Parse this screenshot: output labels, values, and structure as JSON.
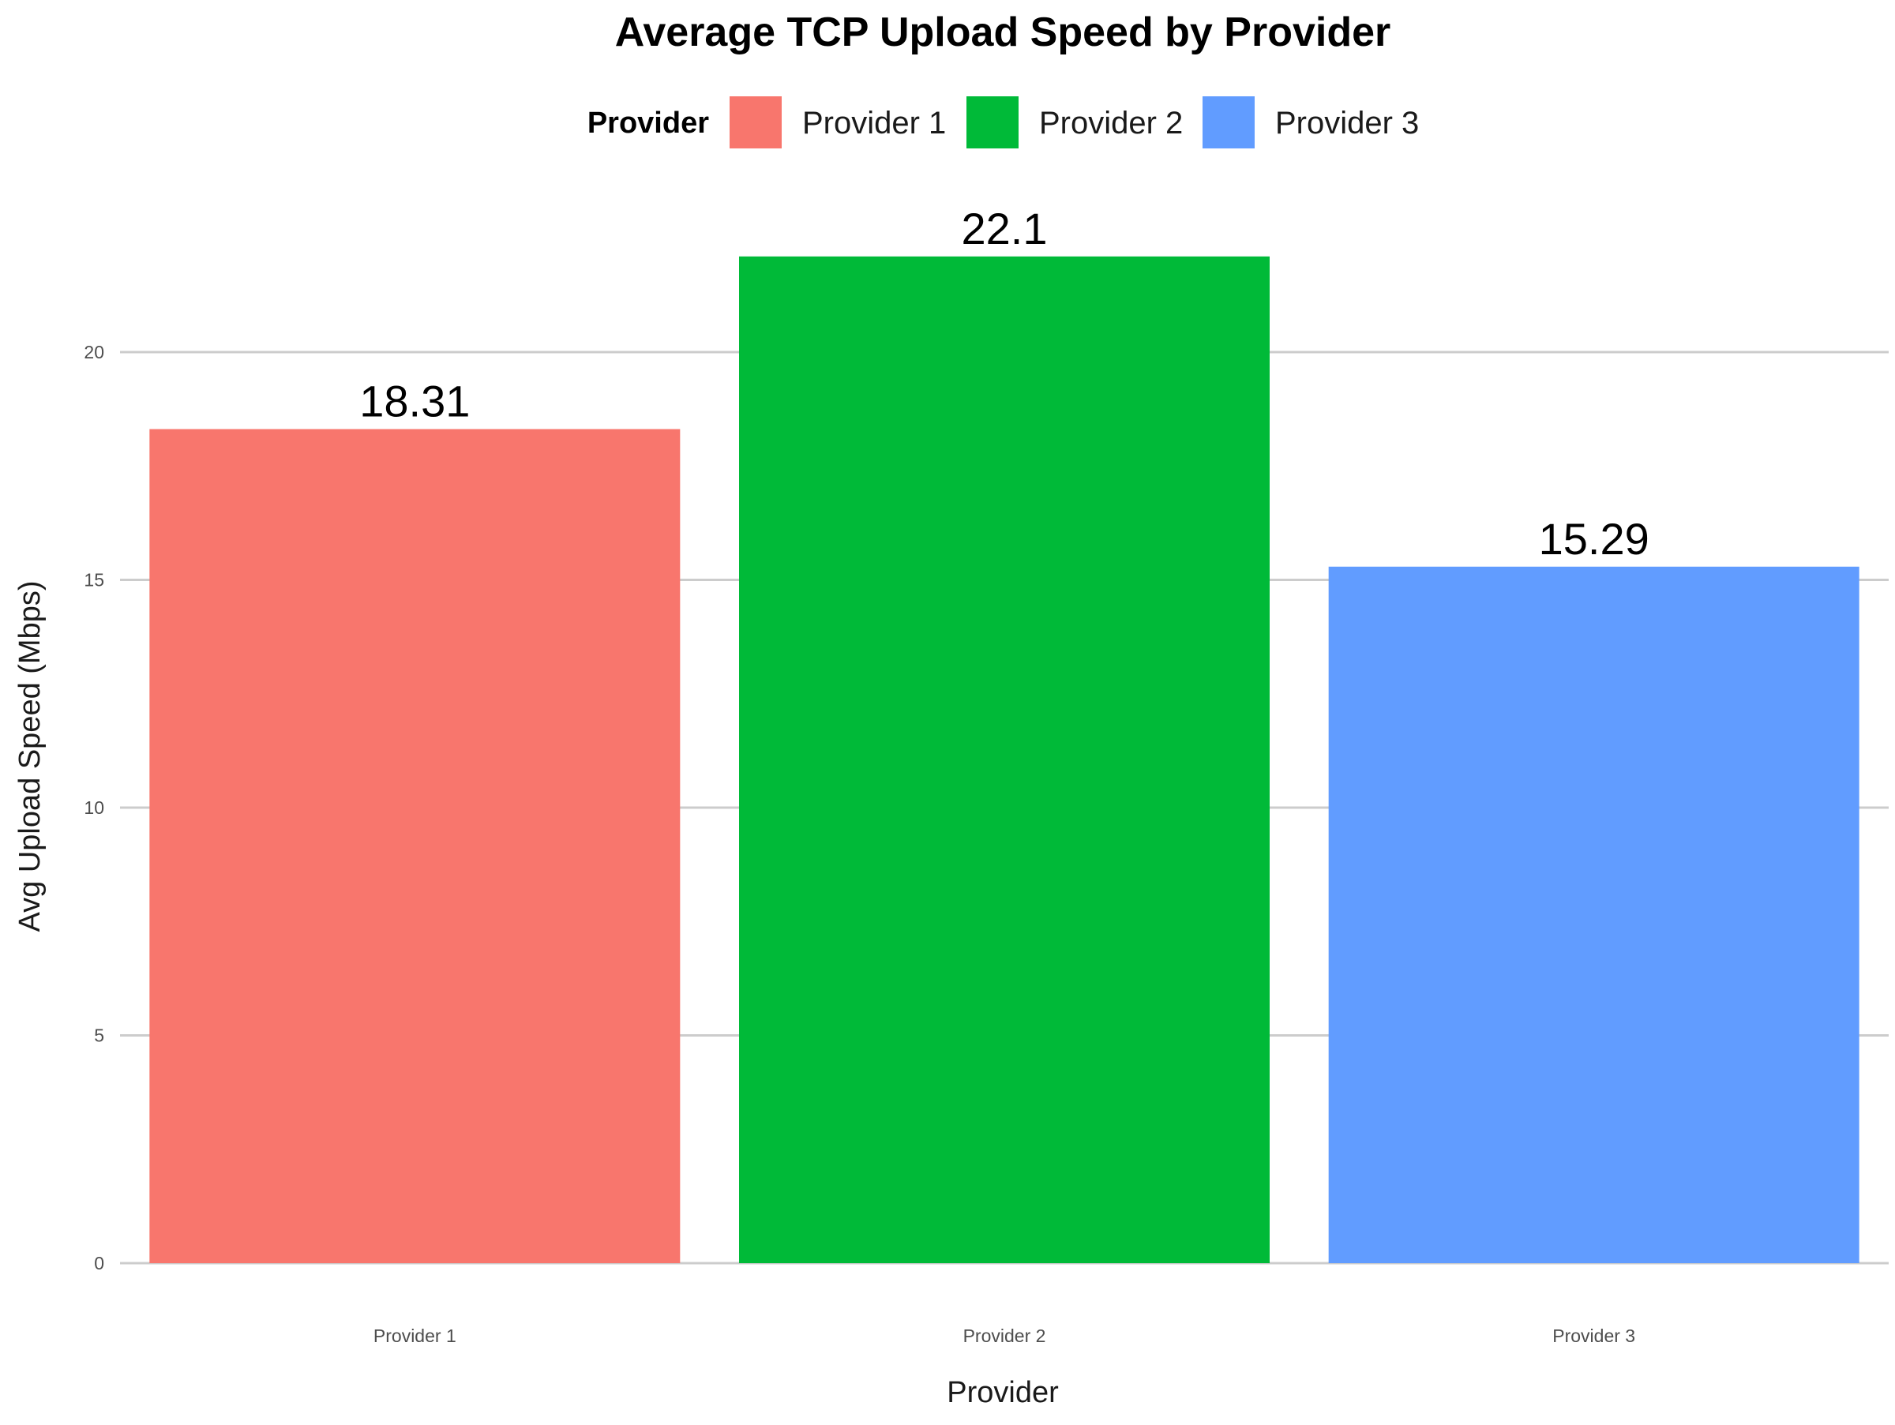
{
  "chart_data": {
    "type": "bar",
    "title": "Average TCP Upload Speed by Provider",
    "xlabel": "Provider",
    "ylabel": "Avg Upload Speed (Mbps)",
    "categories": [
      "Provider 1",
      "Provider 2",
      "Provider 3"
    ],
    "values": [
      18.31,
      22.1,
      15.29
    ],
    "value_labels": [
      "18.31",
      "22.1",
      "15.29"
    ],
    "colors": [
      "#F8766D",
      "#00BA38",
      "#619CFF"
    ],
    "ylim": [
      0,
      23.2
    ],
    "yticks": [
      0,
      5,
      10,
      15,
      20
    ],
    "grid": "horizontal",
    "legend": {
      "title": "Provider",
      "position": "top",
      "items": [
        "Provider 1",
        "Provider 2",
        "Provider 3"
      ]
    }
  }
}
